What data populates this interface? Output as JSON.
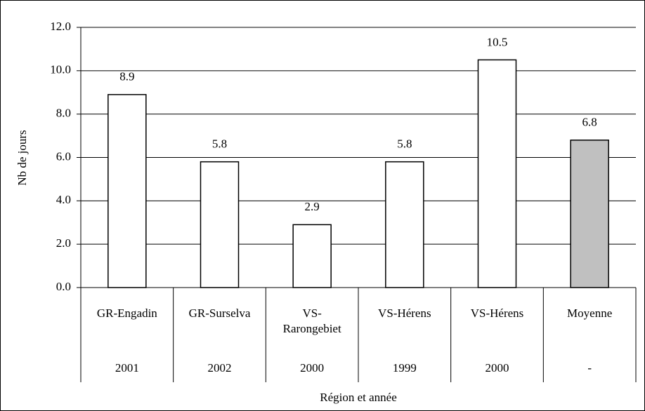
{
  "chart_data": {
    "type": "bar",
    "y_label": "Nb de jours",
    "x_label": "Région et année",
    "categories": [
      "GR-Engadin",
      "GR-Surselva",
      "VS-Rarongebiet",
      "VS-Hérens",
      "VS-Hérens",
      "Moyenne"
    ],
    "years": [
      "2001",
      "2002",
      "2000",
      "1999",
      "2000",
      "-"
    ],
    "values": [
      8.9,
      5.8,
      2.9,
      5.8,
      10.5,
      6.8
    ],
    "colors": [
      "#ffffff",
      "#ffffff",
      "#ffffff",
      "#ffffff",
      "#ffffff",
      "#c0c0c0"
    ],
    "ylim": [
      0,
      12
    ],
    "yticks": [
      {
        "value": 0,
        "label": "0.0"
      },
      {
        "value": 2,
        "label": "2.0"
      },
      {
        "value": 4,
        "label": "4.0"
      },
      {
        "value": 6,
        "label": "6.0"
      },
      {
        "value": 8,
        "label": "8.0"
      },
      {
        "value": 10,
        "label": "10.0"
      },
      {
        "value": 12,
        "label": "12.0"
      }
    ],
    "grid": true
  }
}
